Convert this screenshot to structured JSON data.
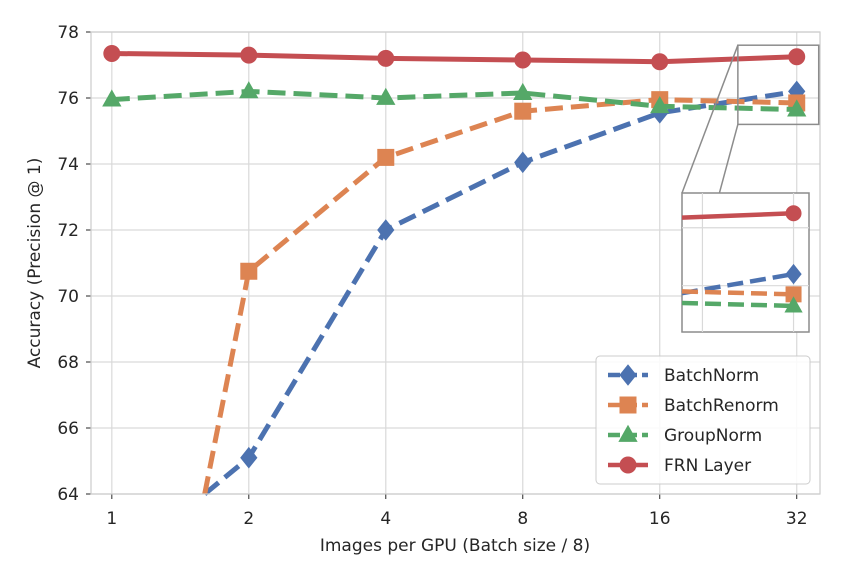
{
  "chart_data": {
    "type": "line",
    "x": [
      1,
      2,
      4,
      8,
      16,
      32
    ],
    "x_tick_labels": [
      "1",
      "2",
      "4",
      "8",
      "16",
      "32"
    ],
    "x_scale": "log2",
    "xlabel": "Images per GPU (Batch size / 8)",
    "ylabel": "Accuracy (Precision @ 1)",
    "ylim": [
      64,
      78
    ],
    "y_ticks": [
      "64",
      "66",
      "68",
      "70",
      "72",
      "74",
      "76",
      "78"
    ],
    "grid": true,
    "legend_position": "bottom-right",
    "series": [
      {
        "name": "BatchNorm",
        "color": "#4c72b0",
        "marker": "diamond",
        "values": [
          null,
          65.1,
          72.0,
          74.05,
          75.55,
          76.2
        ],
        "below_range_at": 1.6
      },
      {
        "name": "BatchRenorm",
        "color": "#dd8452",
        "marker": "square",
        "values": [
          null,
          70.75,
          74.2,
          75.6,
          75.95,
          75.85
        ],
        "below_range_at": 1.6
      },
      {
        "name": "GroupNorm",
        "color": "#55a868",
        "marker": "triangle",
        "values": [
          75.95,
          76.2,
          76.0,
          76.15,
          75.75,
          75.65
        ]
      },
      {
        "name": "FRN Layer",
        "color": "#c44e52",
        "marker": "circle",
        "values": [
          77.35,
          77.3,
          77.2,
          77.15,
          77.1,
          77.25
        ]
      }
    ],
    "inset": {
      "zoom_x_range": [
        24,
        32
      ],
      "zoom_y_range": [
        75.2,
        77.6
      ]
    }
  }
}
